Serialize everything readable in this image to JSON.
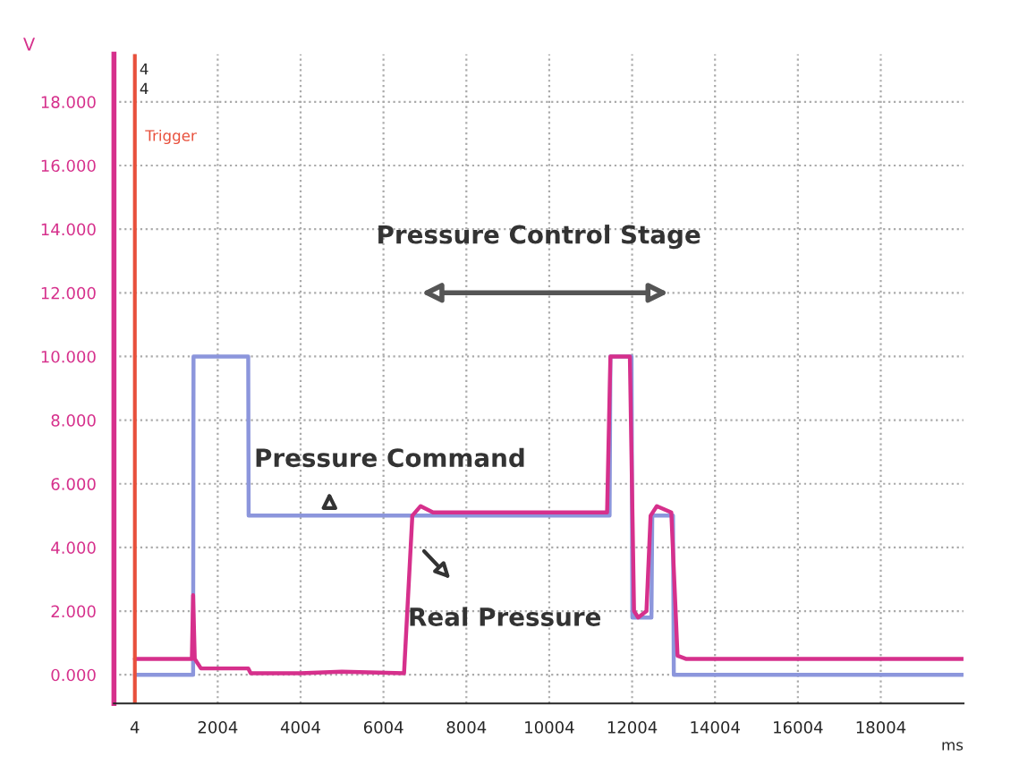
{
  "chart_data": {
    "type": "line",
    "xlabel": "ms",
    "ylabel": "V",
    "xlim": [
      -500,
      20000
    ],
    "ylim": [
      -0.9,
      19.5
    ],
    "xticks": [
      4,
      2004,
      4004,
      6004,
      8004,
      10004,
      12004,
      14004,
      16004,
      18004
    ],
    "yticks": [
      {
        "value": 0,
        "label": "0.000"
      },
      {
        "value": 2,
        "label": "2.000"
      },
      {
        "value": 4,
        "label": "4.000"
      },
      {
        "value": 6,
        "label": "6.000"
      },
      {
        "value": 8,
        "label": "8.000"
      },
      {
        "value": 10,
        "label": "10.000"
      },
      {
        "value": 12,
        "label": "12.000"
      },
      {
        "value": 14,
        "label": "14.000"
      },
      {
        "value": 16,
        "label": "16.000"
      },
      {
        "value": 18,
        "label": "18.000"
      }
    ],
    "grid": true,
    "legend": false,
    "line_style": "solid",
    "series": [
      {
        "color": "#8c96dc",
        "x": [
          4,
          1410,
          1420,
          2740,
          2750,
          11460,
          11480,
          11990,
          12010,
          12470,
          12490,
          12990,
          13010,
          20000
        ],
        "values": [
          0,
          0,
          10,
          10,
          5,
          5,
          10,
          10,
          1.8,
          1.8,
          5,
          5,
          0,
          0
        ]
      },
      {
        "color": "#d6308c",
        "x": [
          4,
          1380,
          1410,
          1450,
          1600,
          2740,
          2800,
          4000,
          5000,
          6500,
          6700,
          6900,
          7200,
          11400,
          11480,
          11950,
          12050,
          12150,
          12350,
          12450,
          12600,
          12950,
          13100,
          13300,
          14000,
          20000
        ],
        "values": [
          0.5,
          0.5,
          2.5,
          0.5,
          0.2,
          0.2,
          0.05,
          0.05,
          0.1,
          0.05,
          5.0,
          5.3,
          5.1,
          5.1,
          10,
          10,
          2.0,
          1.8,
          2.0,
          5.0,
          5.3,
          5.1,
          0.6,
          0.5,
          0.5,
          0.5
        ]
      }
    ],
    "ref_lines": [
      {
        "axis": "x",
        "value": 4,
        "label": "Trigger",
        "color": "#e8503c"
      }
    ],
    "annotations": [
      "4",
      "4",
      "Pressure Control Stage",
      "Pressure Command",
      "Real Pressure"
    ]
  }
}
